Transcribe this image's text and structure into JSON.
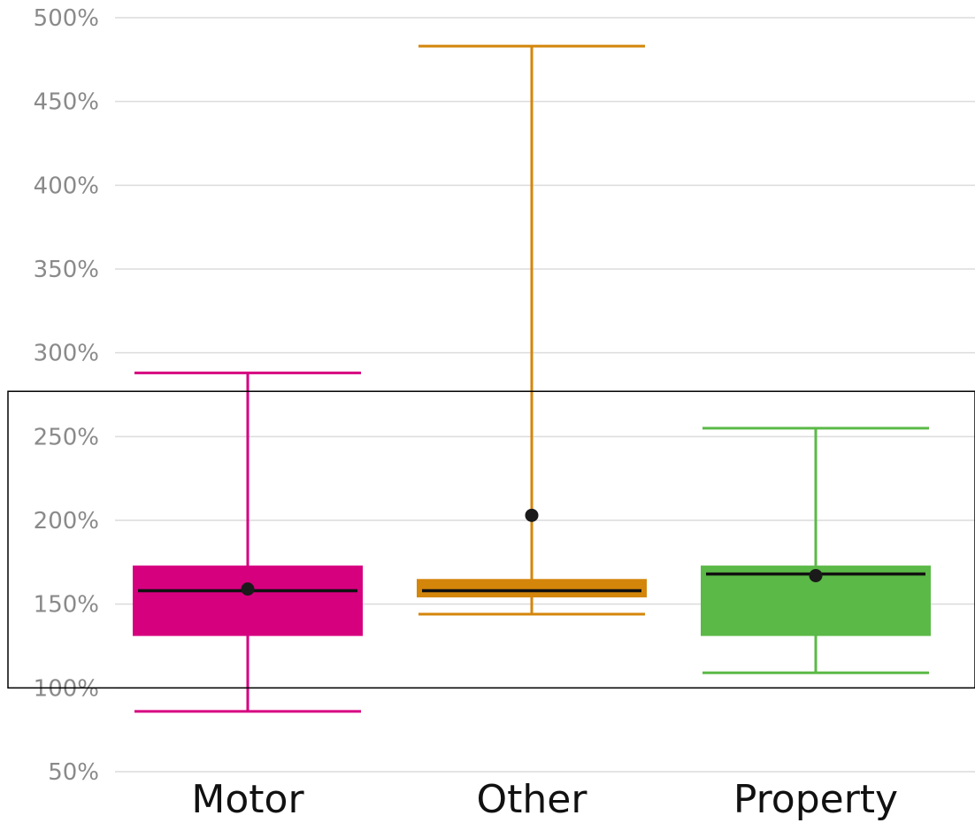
{
  "chart_data": {
    "type": "box",
    "title": "",
    "xlabel": "",
    "ylabel": "",
    "ylim": [
      50,
      500
    ],
    "y_ticks": [
      50,
      100,
      150,
      200,
      250,
      300,
      350,
      400,
      450,
      500
    ],
    "y_tick_labels": [
      "50%",
      "100%",
      "150%",
      "200%",
      "250%",
      "300%",
      "350%",
      "400%",
      "450%",
      "500%"
    ],
    "grid": true,
    "categories": [
      "Motor",
      "Other",
      "Property"
    ],
    "boxes": [
      {
        "category": "Motor",
        "color": "#d6007f",
        "whisker_low": 86,
        "q1": 131,
        "median": 158,
        "q3": 173,
        "whisker_high": 288,
        "mean": 159
      },
      {
        "category": "Other",
        "color": "#d4860b",
        "whisker_low": 144,
        "q1": 154,
        "median": 158,
        "q3": 165,
        "whisker_high": 483,
        "mean": 203
      },
      {
        "category": "Property",
        "color": "#5bb947",
        "whisker_low": 109,
        "q1": 131,
        "median": 168,
        "q3": 173,
        "whisker_high": 255,
        "mean": 167
      }
    ],
    "highlight_range": [
      100,
      277
    ]
  }
}
